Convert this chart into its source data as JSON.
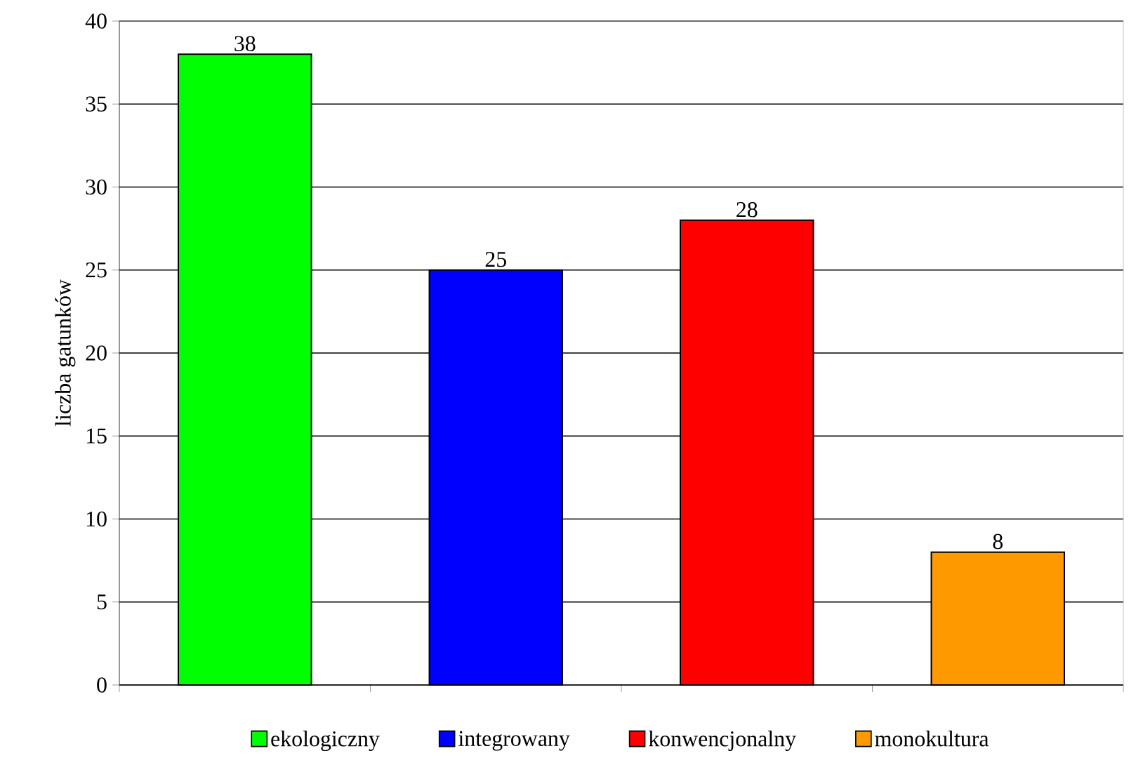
{
  "chart_data": {
    "type": "bar",
    "ylabel": "liczba gatunków",
    "categories": [
      null,
      null,
      null,
      null
    ],
    "series": [
      {
        "name": "ekologiczny",
        "color": "#00ff00",
        "values": [
          38,
          null,
          null,
          null
        ]
      },
      {
        "name": "integrowany",
        "color": "#0000ff",
        "values": [
          null,
          25,
          null,
          null
        ]
      },
      {
        "name": "konwencjonalny",
        "color": "#ff0000",
        "values": [
          null,
          null,
          28,
          null
        ]
      },
      {
        "name": "monokultura",
        "color": "#ff9900",
        "values": [
          null,
          null,
          null,
          8
        ]
      }
    ],
    "ylim": [
      0,
      40
    ],
    "yticks": [
      0,
      5,
      10,
      15,
      20,
      25,
      30,
      35,
      40
    ],
    "grid": "y",
    "legend": "bottom",
    "data_labels": true,
    "tick_labels": "y"
  }
}
